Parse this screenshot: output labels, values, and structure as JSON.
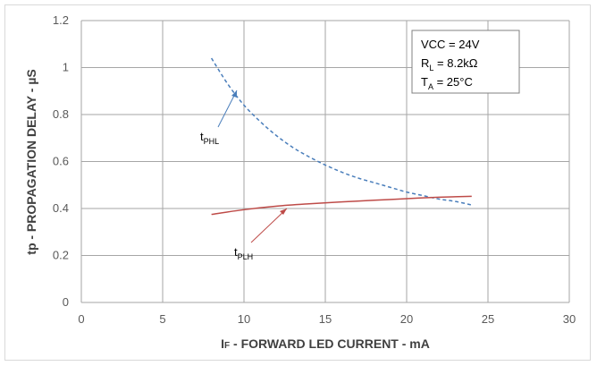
{
  "chart_data": {
    "type": "line",
    "title": "",
    "xlabel_main": "I",
    "xlabel_sub": "F",
    "xlabel_rest": " - FORWARD LED CURRENT - mA",
    "ylabel": "tp - PROPAGATION DELAY - µS",
    "xlim": [
      0,
      30
    ],
    "ylim": [
      0,
      1.2
    ],
    "x_ticks": [
      "0",
      "5",
      "10",
      "15",
      "20",
      "25",
      "30"
    ],
    "y_ticks": [
      "0",
      "0.2",
      "0.4",
      "0.6",
      "0.8",
      "1",
      "1.2"
    ],
    "grid": true,
    "series": [
      {
        "name_main": "t",
        "name_sub": "PHL",
        "color": "#4a7ebb",
        "style": "dashed",
        "x": [
          8,
          9,
          10,
          11,
          12,
          13,
          14,
          15,
          16,
          17,
          18,
          19,
          20,
          21,
          22,
          23,
          24
        ],
        "y": [
          1.04,
          0.93,
          0.84,
          0.77,
          0.71,
          0.66,
          0.62,
          0.585,
          0.555,
          0.53,
          0.51,
          0.49,
          0.47,
          0.455,
          0.44,
          0.43,
          0.415
        ]
      },
      {
        "name_main": "t",
        "name_sub": "PLH",
        "color": "#be4b48",
        "style": "solid",
        "x": [
          8,
          10,
          12,
          14,
          16,
          18,
          20,
          22,
          24
        ],
        "y": [
          0.375,
          0.395,
          0.41,
          0.42,
          0.428,
          0.435,
          0.442,
          0.448,
          0.452
        ]
      }
    ],
    "annotation_lines": [
      {
        "main": "VCC = 24V",
        "sub": "",
        "tail": ""
      },
      {
        "main": "R",
        "sub": "L",
        "tail": " = 8.2kΩ"
      },
      {
        "main": "T",
        "sub": "A",
        "tail": " = 25°C"
      }
    ],
    "colors": {
      "grid": "#a6a6a6",
      "arrow_phl": "#4a7ebb",
      "arrow_plh": "#be4b48"
    }
  }
}
